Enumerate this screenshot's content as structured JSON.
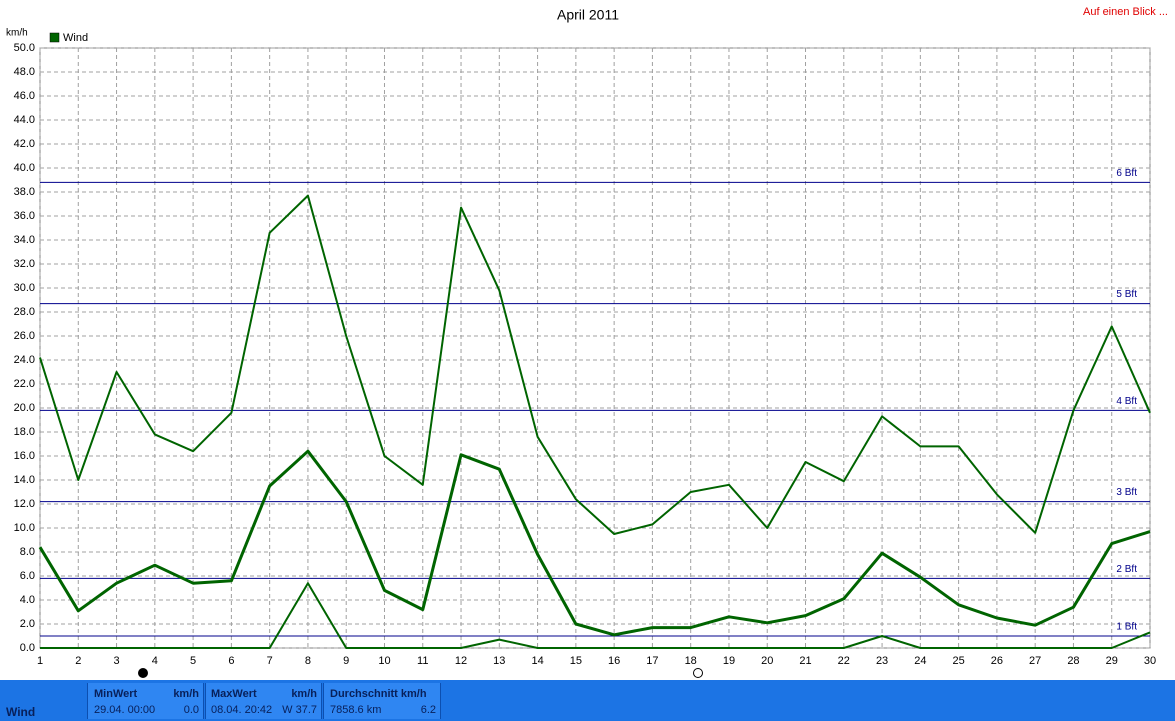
{
  "chart_data": {
    "type": "line",
    "title": "April 2011",
    "corner_link": "Auf einen Blick ...",
    "y_label": "km/h",
    "x": [
      1,
      2,
      3,
      4,
      5,
      6,
      7,
      8,
      9,
      10,
      11,
      12,
      13,
      14,
      15,
      16,
      17,
      18,
      19,
      20,
      21,
      22,
      23,
      24,
      25,
      26,
      27,
      28,
      29,
      30
    ],
    "series": [
      {
        "name": "Wind",
        "color": "#006400",
        "width": 3,
        "values": [
          8.4,
          3.1,
          5.4,
          6.9,
          5.4,
          5.6,
          13.5,
          16.4,
          12.2,
          4.8,
          3.2,
          16.1,
          14.9,
          7.8,
          2.0,
          1.1,
          1.7,
          1.7,
          2.6,
          2.1,
          2.7,
          4.1,
          7.9,
          5.9,
          3.6,
          2.5,
          1.9,
          3.4,
          8.7,
          9.7
        ]
      },
      {
        "color": "#006400",
        "width": 2,
        "values": [
          24.2,
          14.0,
          23.0,
          17.8,
          16.4,
          19.6,
          34.6,
          37.7,
          26.0,
          16.0,
          13.6,
          36.7,
          29.8,
          17.6,
          12.4,
          9.5,
          10.3,
          13.0,
          13.6,
          10.0,
          15.5,
          13.9,
          19.3,
          16.8,
          16.8,
          12.8,
          9.6,
          19.8,
          26.8,
          19.6
        ]
      },
      {
        "color": "#006400",
        "width": 2,
        "values": [
          0,
          0,
          0,
          0,
          0,
          0,
          0,
          5.4,
          0,
          0,
          0,
          0,
          0.7,
          0,
          0,
          0,
          0,
          0,
          0,
          0,
          0,
          0,
          1.0,
          0,
          0,
          0,
          0,
          0,
          0,
          1.3
        ]
      }
    ],
    "xlim": [
      1,
      30
    ],
    "ylim": [
      0,
      50
    ],
    "xticks": [
      1,
      2,
      3,
      4,
      5,
      6,
      7,
      8,
      9,
      10,
      11,
      12,
      13,
      14,
      15,
      16,
      17,
      18,
      19,
      20,
      21,
      22,
      23,
      24,
      25,
      26,
      27,
      28,
      29,
      30
    ],
    "yticks": [
      {
        "value": 0,
        "label": "0.0"
      },
      {
        "value": 2,
        "label": "2.0"
      },
      {
        "value": 4,
        "label": "4.0"
      },
      {
        "value": 6,
        "label": "6.0"
      },
      {
        "value": 8,
        "label": "8.0"
      },
      {
        "value": 10,
        "label": "10.0"
      },
      {
        "value": 12,
        "label": "12.0"
      },
      {
        "value": 14,
        "label": "14.0"
      },
      {
        "value": 16,
        "label": "16.0"
      },
      {
        "value": 18,
        "label": "18.0"
      },
      {
        "value": 20,
        "label": "20.0"
      },
      {
        "value": 22,
        "label": "22.0"
      },
      {
        "value": 24,
        "label": "24.0"
      },
      {
        "value": 26,
        "label": "26.0"
      },
      {
        "value": 28,
        "label": "28.0"
      },
      {
        "value": 30,
        "label": "30.0"
      },
      {
        "value": 32,
        "label": "32.0"
      },
      {
        "value": 34,
        "label": "34.0"
      },
      {
        "value": 36,
        "label": "36.0"
      },
      {
        "value": 38,
        "label": "38.0"
      },
      {
        "value": 40,
        "label": "40.0"
      },
      {
        "value": 42,
        "label": "42.0"
      },
      {
        "value": 44,
        "label": "44.0"
      },
      {
        "value": 46,
        "label": "46.0"
      },
      {
        "value": 48,
        "label": "48.0"
      },
      {
        "value": 50,
        "label": "50.0"
      }
    ],
    "grid": true,
    "reference_lines": {
      "color": "#00008b",
      "lines": [
        {
          "value": 1.0,
          "label": "1 Bft"
        },
        {
          "value": 5.8,
          "label": "2 Bft"
        },
        {
          "value": 12.2,
          "label": "3 Bft"
        },
        {
          "value": 19.8,
          "label": "4 Bft"
        },
        {
          "value": 28.7,
          "label": "5 Bft"
        },
        {
          "value": 38.8,
          "label": "6 Bft"
        }
      ]
    }
  },
  "stats": {
    "label": "Wind",
    "min": {
      "title": "MinWert",
      "unit": "km/h",
      "when": "29.04.  00:00",
      "value": "0.0"
    },
    "max": {
      "title": "MaxWert",
      "unit": "km/h",
      "when": "08.04.  20:42",
      "value": "W 37.7"
    },
    "avg": {
      "title": "Durchschnitt km/h",
      "when": "7858.6 km",
      "value": "6.2"
    }
  }
}
